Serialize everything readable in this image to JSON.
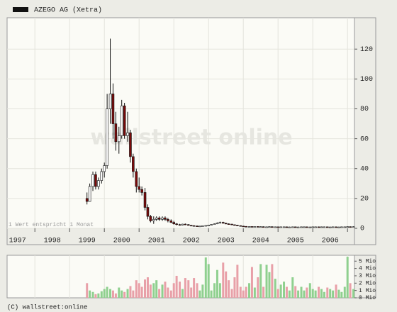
{
  "chart_data": {
    "type": "candlestick",
    "title": "AZEGO AG (Xetra)",
    "annotation": "1 Wert entspricht 1 Monat",
    "watermark": "wallstreet online",
    "footer": "(C) wallstreet:online",
    "color": "#111111",
    "up_color": "#ffffff",
    "down_color": "#7a0a0a",
    "grid": true,
    "xlim": [
      1997.2,
      2007.2
    ],
    "xgrid": [
      1998,
      1999,
      2000,
      2001,
      2002,
      2003,
      2004,
      2005,
      2006,
      2007
    ],
    "xticks": [
      {
        "value": 1997.5,
        "label": "1997"
      },
      {
        "value": 1998.5,
        "label": "1998"
      },
      {
        "value": 1999.5,
        "label": "1999"
      },
      {
        "value": 2000.5,
        "label": "2000"
      },
      {
        "value": 2001.5,
        "label": "2001"
      },
      {
        "value": 2002.5,
        "label": "2002"
      },
      {
        "value": 2003.5,
        "label": "2003"
      },
      {
        "value": 2004.5,
        "label": "2004"
      },
      {
        "value": 2005.5,
        "label": "2005"
      },
      {
        "value": 2006.5,
        "label": "2006"
      }
    ],
    "ylim": [
      0,
      141
    ],
    "yticks": [
      0,
      20,
      40,
      60,
      80,
      100,
      120
    ],
    "x": [
      1999.5,
      1999.58,
      1999.67,
      1999.75,
      1999.83,
      1999.92,
      2000.0,
      2000.08,
      2000.17,
      2000.25,
      2000.33,
      2000.42,
      2000.5,
      2000.58,
      2000.67,
      2000.75,
      2000.83,
      2000.92,
      2001.0,
      2001.08,
      2001.17,
      2001.25,
      2001.33,
      2001.42,
      2001.5,
      2001.58,
      2001.67,
      2001.75,
      2001.83,
      2001.92,
      2002.0,
      2002.08,
      2002.17,
      2002.25,
      2002.33,
      2002.42,
      2002.5,
      2002.58,
      2002.67,
      2002.75,
      2002.83,
      2002.92,
      2003.0,
      2003.08,
      2003.17,
      2003.25,
      2003.33,
      2003.42,
      2003.5,
      2003.58,
      2003.67,
      2003.75,
      2003.83,
      2003.92,
      2004.0,
      2004.08,
      2004.17,
      2004.25,
      2004.33,
      2004.42,
      2004.5,
      2004.58,
      2004.67,
      2004.75,
      2004.83,
      2004.92,
      2005.0,
      2005.08,
      2005.17,
      2005.25,
      2005.33,
      2005.42,
      2005.5,
      2005.58,
      2005.67,
      2005.75,
      2005.83,
      2005.92,
      2006.0,
      2006.08,
      2006.17,
      2006.25,
      2006.33,
      2006.42,
      2006.5,
      2006.58,
      2006.67,
      2006.75,
      2006.83,
      2006.92,
      2007.0,
      2007.08,
      2007.17
    ],
    "open": [
      20,
      18,
      28,
      36,
      28,
      32,
      38,
      42,
      80,
      90,
      70,
      58,
      62,
      82,
      62,
      64,
      48,
      38,
      28,
      26,
      24,
      14,
      8,
      5,
      6,
      7,
      6,
      7,
      6,
      5,
      4,
      3,
      2.5,
      2.2,
      2.8,
      2.5,
      2,
      1.8,
      1.6,
      1.4,
      1.5,
      1.7,
      1.9,
      2.2,
      2.6,
      3,
      3.6,
      4,
      3.4,
      3,
      2.8,
      2.4,
      2.1,
      1.8,
      1.5,
      1.3,
      1.2,
      1.2,
      1.1,
      1.2,
      1.1,
      1.1,
      1.0,
      1.0,
      1.1,
      1.0,
      1.0,
      0.9,
      1.0,
      1.0,
      0.9,
      0.9,
      1.0,
      0.9,
      0.9,
      1.0,
      1.0,
      0.9,
      0.9,
      1.0,
      1.0,
      0.9,
      1.0,
      1.0,
      0.9,
      0.9,
      1.0,
      0.9,
      0.9,
      1.0,
      1.0,
      1.1,
      1.0
    ],
    "high": [
      24,
      30,
      38,
      38,
      34,
      40,
      44,
      90,
      127,
      97,
      78,
      68,
      86,
      84,
      78,
      66,
      50,
      40,
      34,
      28,
      27,
      16,
      9,
      8,
      8,
      8,
      8,
      8,
      7,
      6,
      5,
      3.5,
      3,
      3,
      3.2,
      2.8,
      2.3,
      2,
      1.8,
      1.7,
      1.9,
      2,
      2.4,
      2.8,
      3.2,
      4,
      4.5,
      4.4,
      3.8,
      3.3,
      3,
      2.6,
      2.3,
      2,
      1.7,
      1.5,
      1.4,
      1.4,
      1.4,
      1.4,
      1.3,
      1.3,
      1.2,
      1.3,
      1.3,
      1.2,
      1.2,
      1.2,
      1.2,
      1.2,
      1.1,
      1.2,
      1.2,
      1.1,
      1.2,
      1.2,
      1.2,
      1.1,
      1.2,
      1.2,
      1.2,
      1.2,
      1.2,
      1.2,
      1.1,
      1.2,
      1.2,
      1.1,
      1.2,
      1.2,
      1.3,
      1.3,
      1.3
    ],
    "low": [
      16,
      18,
      25,
      26,
      26,
      30,
      34,
      40,
      70,
      60,
      52,
      50,
      60,
      60,
      58,
      44,
      34,
      24,
      24,
      22,
      12,
      6,
      4,
      3,
      5,
      5,
      5,
      5,
      4,
      3.5,
      2.5,
      2,
      1.8,
      2,
      2.2,
      1.8,
      1.5,
      1.4,
      1.2,
      1.2,
      1.3,
      1.5,
      1.7,
      2,
      2.4,
      2.8,
      3.2,
      3.2,
      2.8,
      2.5,
      2.2,
      2,
      1.6,
      1.4,
      1.2,
      1.0,
      1.0,
      0.9,
      0.9,
      0.9,
      0.9,
      0.8,
      0.8,
      0.8,
      0.8,
      0.8,
      0.7,
      0.7,
      0.8,
      0.7,
      0.7,
      0.7,
      0.7,
      0.7,
      0.7,
      0.8,
      0.7,
      0.7,
      0.7,
      0.8,
      0.7,
      0.7,
      0.8,
      0.7,
      0.7,
      0.7,
      0.7,
      0.7,
      0.7,
      0.8,
      0.8,
      0.8,
      0.8
    ],
    "close": [
      18,
      28,
      36,
      28,
      32,
      38,
      42,
      80,
      90,
      70,
      58,
      62,
      82,
      62,
      64,
      48,
      38,
      28,
      26,
      24,
      14,
      8,
      5,
      6,
      7,
      6,
      7,
      6,
      5,
      4,
      3,
      2.5,
      2.2,
      2.8,
      2.5,
      2,
      1.8,
      1.6,
      1.4,
      1.5,
      1.7,
      1.9,
      2.2,
      2.6,
      3,
      3.6,
      4,
      3.4,
      3,
      2.8,
      2.4,
      2.1,
      1.8,
      1.5,
      1.3,
      1.2,
      1.2,
      1.1,
      1.2,
      1.1,
      1.1,
      1.0,
      1.0,
      1.1,
      1.0,
      1.0,
      0.9,
      1.0,
      1.0,
      0.9,
      0.9,
      1.0,
      0.9,
      0.9,
      1.0,
      1.0,
      0.9,
      0.9,
      1.0,
      1.0,
      0.9,
      1.0,
      1.0,
      0.9,
      0.9,
      1.0,
      0.9,
      0.9,
      1.0,
      1.0,
      1.1,
      1.0,
      1.1
    ],
    "volume": {
      "up_color": "#8fd08f",
      "down_color": "#e8a0a8",
      "ylim": [
        0,
        5.8
      ],
      "yticks": [
        {
          "value": 0,
          "label": "0 Mio"
        },
        {
          "value": 1,
          "label": "1 Mio"
        },
        {
          "value": 2,
          "label": "2 Mio"
        },
        {
          "value": 3,
          "label": "3 Mio"
        },
        {
          "value": 4,
          "label": "4 Mio"
        },
        {
          "value": 5,
          "label": "5 Mio"
        }
      ],
      "values": [
        2,
        1,
        0.8,
        0.5,
        0.6,
        0.9,
        1.2,
        1.5,
        1.2,
        1,
        0.6,
        1.4,
        1,
        0.8,
        1.2,
        1.6,
        1,
        2.4,
        2,
        1.5,
        2.5,
        2.8,
        1.8,
        2,
        2.4,
        1.2,
        1.8,
        2.2,
        1.4,
        1,
        2,
        3,
        2.2,
        1.2,
        2.7,
        2.4,
        1.4,
        2.7,
        2,
        1,
        1.8,
        5.5,
        4.6,
        1,
        2,
        3.8,
        2,
        4.8,
        3.6,
        2.4,
        1.2,
        2.8,
        4.5,
        1.5,
        1,
        1.5,
        2,
        4.2,
        1.4,
        2.8,
        4.6,
        1.5,
        4.5,
        3.5,
        4.6,
        2.6,
        1.2,
        1.8,
        2.2,
        1.5,
        1,
        2.8,
        1.6,
        1,
        1.5,
        1,
        1.4,
        2,
        1.2,
        1,
        1.5,
        1.2,
        0.8,
        1.4,
        1.2,
        1,
        1.8,
        1.1,
        0.8,
        1.5,
        5.6,
        2,
        1.2
      ]
    }
  }
}
